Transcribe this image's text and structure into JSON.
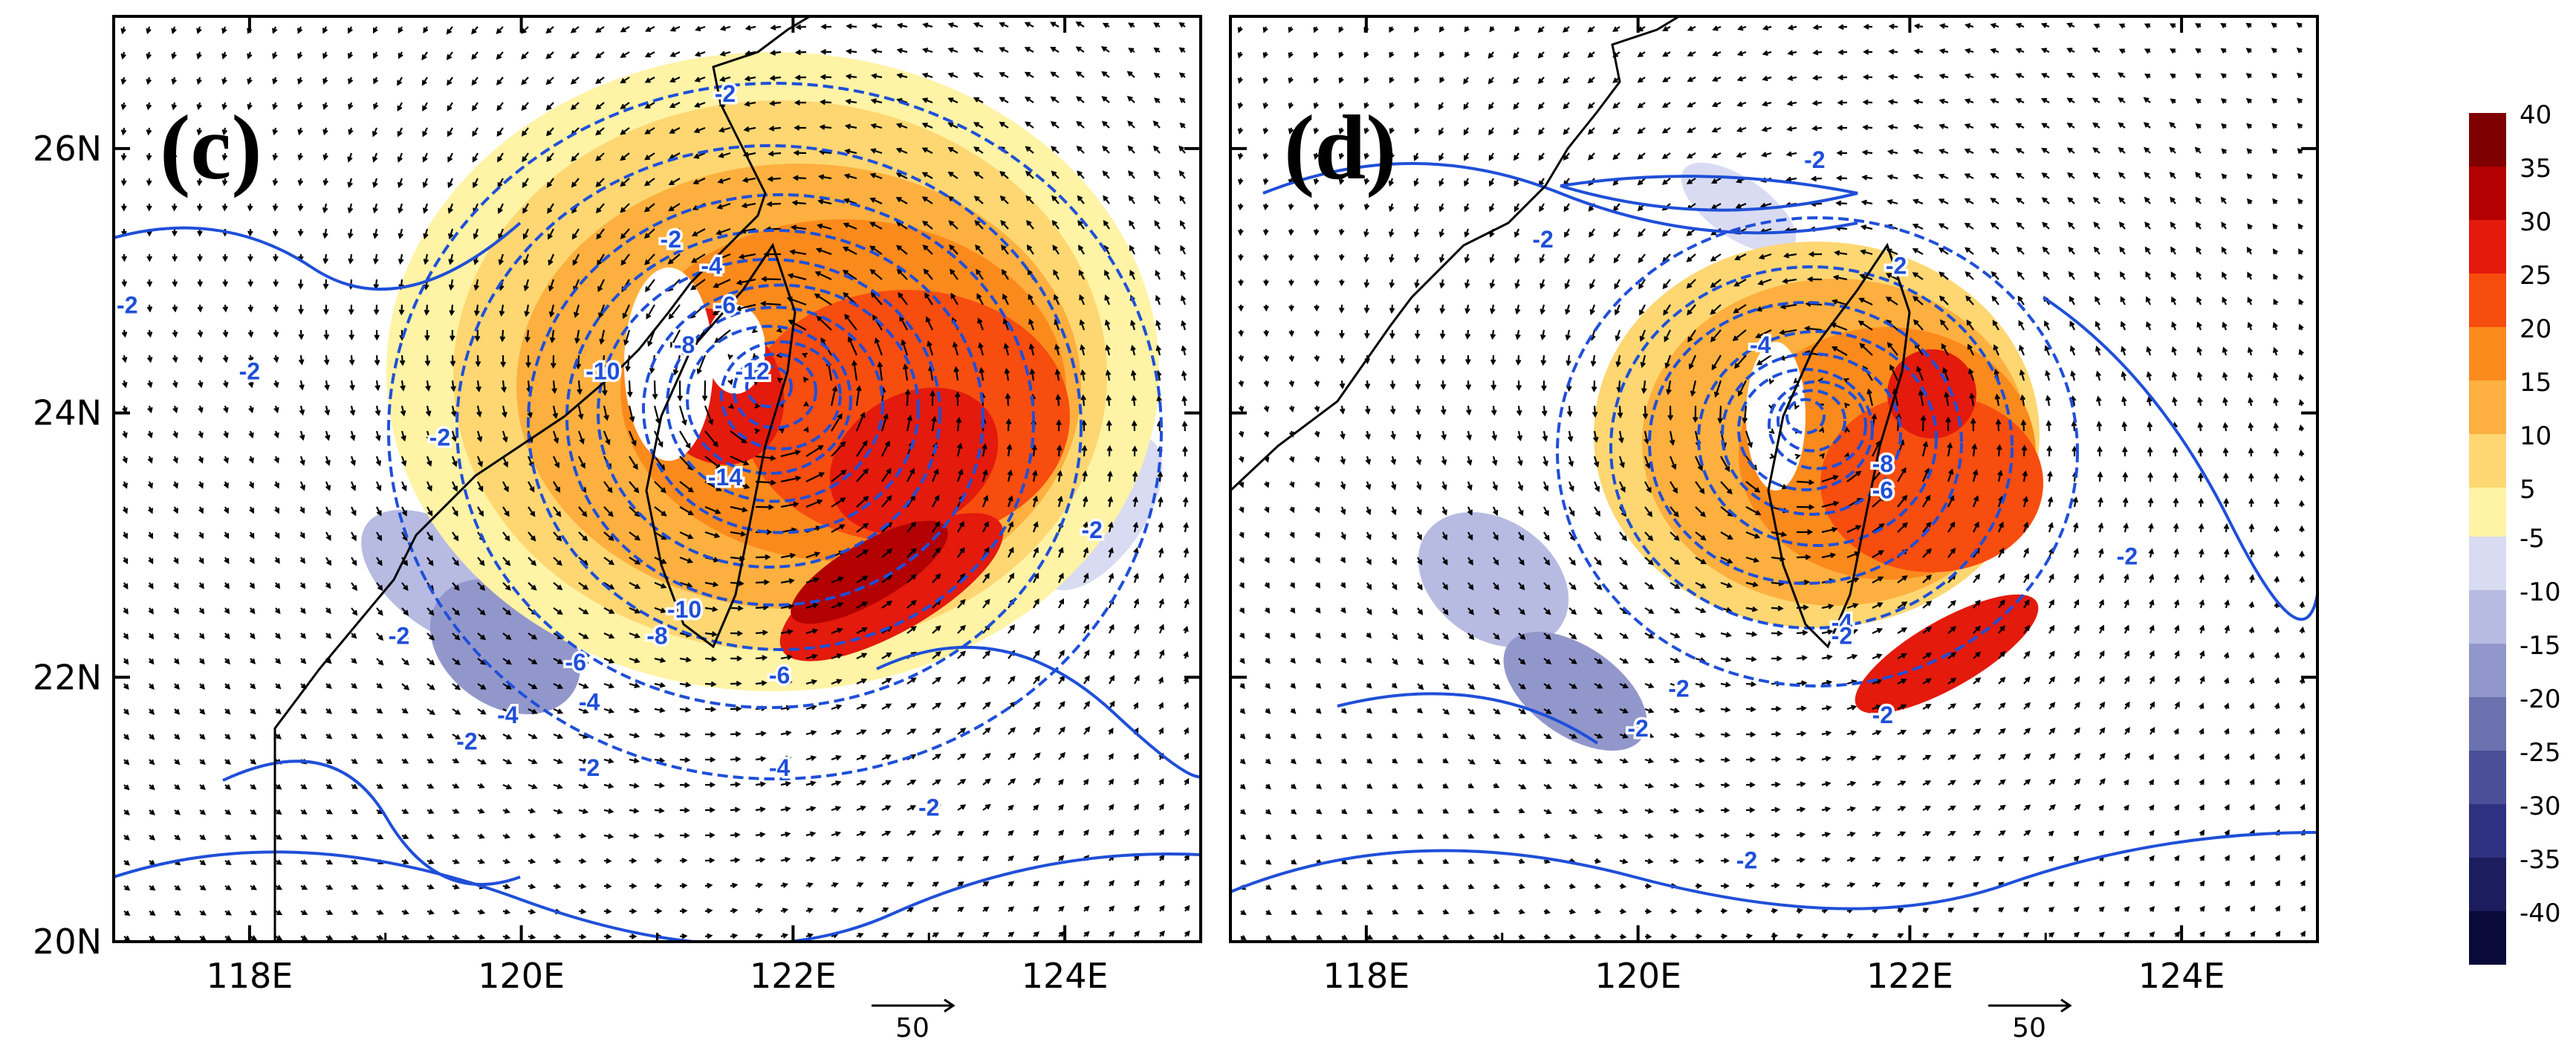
{
  "chart_data": [
    {
      "type": "map",
      "panel_label": "(c)",
      "x_ticks": [
        "118E",
        "120E",
        "122E",
        "124E"
      ],
      "x_tick_values": [
        118,
        120,
        122,
        124
      ],
      "y_ticks": [
        "20N",
        "22N",
        "24N",
        "26N"
      ],
      "y_tick_values": [
        20,
        22,
        24,
        26
      ],
      "xlim": [
        117,
        125
      ],
      "ylim": [
        20,
        27
      ],
      "vector_reference": {
        "label": "50",
        "magnitude": 50
      },
      "contour_labels": [
        {
          "text": "-2",
          "lon": 121.5,
          "lat": 26.4
        },
        {
          "text": "-2",
          "lon": 117.1,
          "lat": 24.8
        },
        {
          "text": "-2",
          "lon": 118.0,
          "lat": 24.3
        },
        {
          "text": "-2",
          "lon": 119.4,
          "lat": 23.8
        },
        {
          "text": "-2",
          "lon": 121.1,
          "lat": 25.3
        },
        {
          "text": "-4",
          "lon": 121.4,
          "lat": 25.1
        },
        {
          "text": "-6",
          "lon": 121.5,
          "lat": 24.8
        },
        {
          "text": "-8",
          "lon": 121.2,
          "lat": 24.5
        },
        {
          "text": "-10",
          "lon": 120.6,
          "lat": 24.3
        },
        {
          "text": "-12",
          "lon": 121.7,
          "lat": 24.3
        },
        {
          "text": "-14",
          "lon": 121.5,
          "lat": 23.5
        },
        {
          "text": "-2",
          "lon": 124.2,
          "lat": 23.1
        },
        {
          "text": "-2",
          "lon": 119.1,
          "lat": 22.3
        },
        {
          "text": "-10",
          "lon": 121.2,
          "lat": 22.5
        },
        {
          "text": "-8",
          "lon": 121.0,
          "lat": 22.3
        },
        {
          "text": "-6",
          "lon": 120.4,
          "lat": 22.1
        },
        {
          "text": "-6",
          "lon": 121.9,
          "lat": 22.0
        },
        {
          "text": "-4",
          "lon": 120.5,
          "lat": 21.8
        },
        {
          "text": "-4",
          "lon": 119.9,
          "lat": 21.7
        },
        {
          "text": "-2",
          "lon": 119.6,
          "lat": 21.5
        },
        {
          "text": "-2",
          "lon": 120.5,
          "lat": 21.3
        },
        {
          "text": "-4",
          "lon": 121.9,
          "lat": 21.3
        },
        {
          "text": "-2",
          "lon": 123.0,
          "lat": 21.0
        }
      ]
    },
    {
      "type": "map",
      "panel_label": "(d)",
      "x_ticks": [
        "118E",
        "120E",
        "122E",
        "124E"
      ],
      "x_tick_values": [
        118,
        120,
        122,
        124
      ],
      "y_ticks": [
        "20N",
        "22N",
        "24N",
        "26N"
      ],
      "y_tick_values": [
        20,
        22,
        24,
        26
      ],
      "xlim": [
        117,
        125
      ],
      "ylim": [
        20,
        27
      ],
      "vector_reference": {
        "label": "50",
        "magnitude": 50
      },
      "contour_labels": [
        {
          "text": "-2",
          "lon": 121.3,
          "lat": 25.9
        },
        {
          "text": "-2",
          "lon": 119.3,
          "lat": 25.3
        },
        {
          "text": "-2",
          "lon": 121.9,
          "lat": 25.1
        },
        {
          "text": "-4",
          "lon": 120.9,
          "lat": 24.5
        },
        {
          "text": "-8",
          "lon": 121.8,
          "lat": 23.6
        },
        {
          "text": "-6",
          "lon": 121.8,
          "lat": 23.4
        },
        {
          "text": "-4",
          "lon": 121.5,
          "lat": 22.4
        },
        {
          "text": "-2",
          "lon": 121.5,
          "lat": 22.3
        },
        {
          "text": "-2",
          "lon": 123.6,
          "lat": 22.9
        },
        {
          "text": "-2",
          "lon": 120.3,
          "lat": 21.9
        },
        {
          "text": "-2",
          "lon": 120.0,
          "lat": 21.6
        },
        {
          "text": "-2",
          "lon": 121.8,
          "lat": 21.7
        },
        {
          "text": "-2",
          "lon": 120.8,
          "lat": 20.6
        }
      ]
    }
  ],
  "colorbar": {
    "positive": [
      {
        "label": "40",
        "color": "#7f0000"
      },
      {
        "label": "35",
        "color": "#b30000"
      },
      {
        "label": "30",
        "color": "#e31a0c"
      },
      {
        "label": "25",
        "color": "#f74d0f"
      },
      {
        "label": "20",
        "color": "#fb8a1c"
      },
      {
        "label": "15",
        "color": "#fdb03f"
      },
      {
        "label": "10",
        "color": "#fed772"
      },
      {
        "label": "5",
        "color": "#fff3a5"
      }
    ],
    "negative": [
      {
        "label": "-5",
        "color": "#d8dbf2"
      },
      {
        "label": "-10",
        "color": "#b7bbe2"
      },
      {
        "label": "-15",
        "color": "#9297cb"
      },
      {
        "label": "-20",
        "color": "#6c71b0"
      },
      {
        "label": "-25",
        "color": "#4a4f98"
      },
      {
        "label": "-30",
        "color": "#2e3180"
      },
      {
        "label": "-35",
        "color": "#1b1d5e"
      },
      {
        "label": "-40",
        "color": "#0a0a3a"
      }
    ]
  },
  "colors": {
    "contour": "#1f4fd8",
    "vector": "#000000",
    "coast": "#000000"
  }
}
